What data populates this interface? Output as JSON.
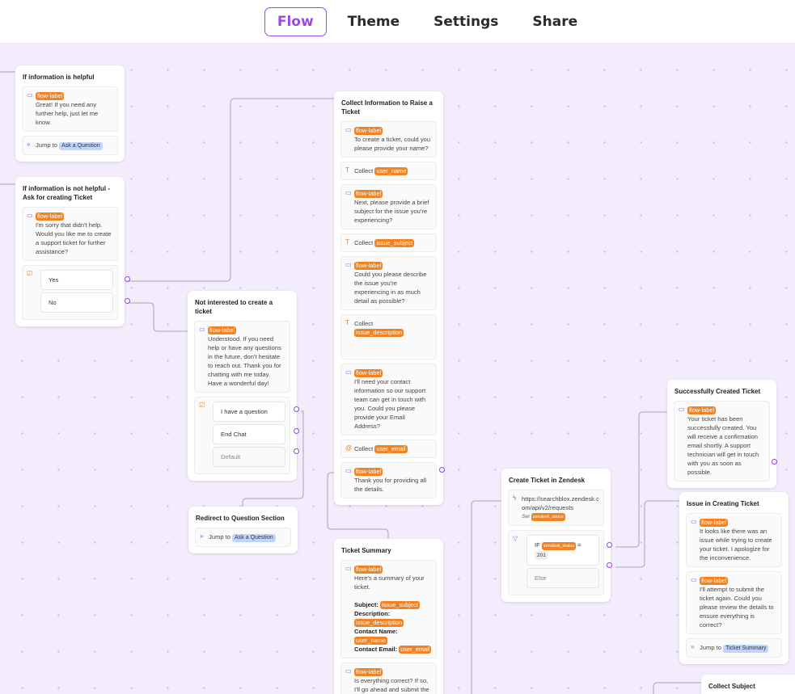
{
  "tabs": [
    {
      "label": "Flow",
      "active": true
    },
    {
      "label": "Theme"
    },
    {
      "label": "Settings"
    },
    {
      "label": "Share"
    }
  ],
  "colors": {
    "accent": "#9b4ae6",
    "label": "#f58220",
    "canvas": "#f3ecfc",
    "jump_target": "#c2d4fb"
  },
  "nodes": [
    {
      "title": "If information is helpful",
      "blocks": [
        {
          "type": "message",
          "label": "flow-label",
          "text": "Great! If you need any further help, just let me know."
        },
        {
          "type": "jump",
          "prefix": "Jump to",
          "target": "Ask a Question"
        }
      ]
    },
    {
      "title": "If information is not helpful - Ask for creating Ticket",
      "blocks": [
        {
          "type": "message",
          "label": "flow-label",
          "text": "I'm sorry that didn't help. Would you like me to create a support ticket for further assistance?"
        },
        {
          "type": "choices",
          "options": [
            "Yes",
            "No"
          ]
        }
      ]
    },
    {
      "title": "Not interested to create a ticket",
      "blocks": [
        {
          "type": "message",
          "label": "flow-label",
          "text": "Understood. If you need help or have any questions in the future, don't hesitate to reach out. Thank you for chatting with me today. Have a wonderful day!"
        },
        {
          "type": "choices",
          "options": [
            "I have a question",
            "End Chat"
          ],
          "default": "Default"
        }
      ]
    },
    {
      "title": "Redirect to Question Section",
      "blocks": [
        {
          "type": "jump",
          "prefix": "Jump to",
          "target": "Ask a Question"
        }
      ]
    },
    {
      "title": "Collect Information to Raise a Ticket",
      "blocks": [
        {
          "type": "message",
          "label": "flow-label",
          "text": "To create a ticket, could you please provide your name?"
        },
        {
          "type": "collect",
          "icon": "text",
          "prefix": "Collect",
          "var": "user_name"
        },
        {
          "type": "message",
          "label": "flow-label",
          "text": "Next, please provide a brief subject for the issue you're experiencing?"
        },
        {
          "type": "collect",
          "icon": "text",
          "prefix": "Collect",
          "var": "issue_subject"
        },
        {
          "type": "message",
          "label": "flow-label",
          "text": "Could you please describe the issue you're experiencing in as much detail as possible?"
        },
        {
          "type": "collect",
          "icon": "text",
          "prefix": "Collect",
          "var": "issue_description",
          "tall": true
        },
        {
          "type": "message",
          "label": "flow-label",
          "text": "I'll need your contact information so our support team can get in touch with you. Could you please provide your Email Address?"
        },
        {
          "type": "collect",
          "icon": "at",
          "prefix": "Collect",
          "var": "user_email"
        },
        {
          "type": "message",
          "label": "flow-label",
          "text": "Thank you for providing all the details."
        }
      ]
    },
    {
      "title": "Ticket Summary",
      "blocks": [
        {
          "type": "summary",
          "label": "flow-label",
          "text": "Here's a summary of your ticket.",
          "rows": [
            {
              "key": "Subject:",
              "var": "issue_subject"
            },
            {
              "key": "Description:",
              "var": "issue_description"
            },
            {
              "key": "Contact Name:",
              "var": "user_name"
            },
            {
              "key": "Contact Email:",
              "var": "user_email"
            }
          ]
        },
        {
          "type": "message",
          "label": "flow-label",
          "text": "Is everything correct? If so, I'll go ahead and submit the ticket."
        }
      ]
    },
    {
      "title": "Create Ticket in Zendesk",
      "blocks": [
        {
          "type": "api",
          "url": "https://searchblox.zendesk.com/api/v2/requests",
          "set_prefix": "Set",
          "set_var": "zendesk_status"
        },
        {
          "type": "condition",
          "if": "IF",
          "var": "zendesk_status",
          "op": "=",
          "value": "201",
          "else": "Else"
        }
      ]
    },
    {
      "title": "Successfully Created Ticket",
      "blocks": [
        {
          "type": "message",
          "label": "flow-label",
          "text": "Your ticket has been successfully created. You will receive a confirmation email shortly. A support technician will get in touch with you as soon as possible."
        }
      ]
    },
    {
      "title": "Issue in Creating Ticket",
      "blocks": [
        {
          "type": "message",
          "label": "flow-label",
          "text": "It looks like there was an issue while trying to create your ticket. I apologize for the inconvenience."
        },
        {
          "type": "message",
          "label": "flow-label",
          "text": "I'll attempt to submit the ticket again. Could you please review the details to ensure everything is correct?"
        },
        {
          "type": "jump",
          "prefix": "Jump to",
          "target": "Ticket Summary"
        }
      ]
    },
    {
      "title": "Collect Subject",
      "blocks": []
    }
  ]
}
